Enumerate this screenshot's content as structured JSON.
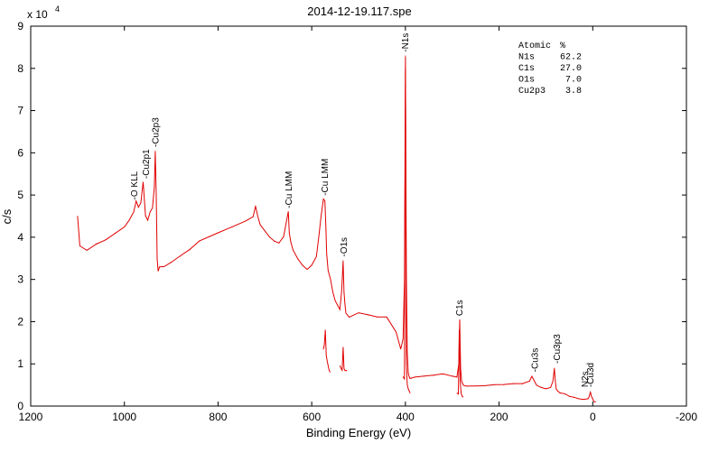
{
  "chart_data": {
    "type": "line",
    "title": "2014-12-19.117.spe",
    "xlabel": "Binding Energy (eV)",
    "ylabel": "c/s",
    "y_multiplier": "x 10",
    "y_exponent": "4",
    "xlim": [
      1200,
      -200
    ],
    "ylim": [
      0,
      9
    ],
    "x_reversed": true,
    "grid": false,
    "x_ticks": [
      1200,
      1000,
      800,
      600,
      400,
      200,
      0,
      -200
    ],
    "y_ticks": [
      0,
      1,
      2,
      3,
      4,
      5,
      6,
      7,
      8,
      9
    ],
    "series_color": "#e00000",
    "series": [
      {
        "x": [
          1100,
          1095,
          1080,
          1060,
          1040,
          1020,
          1000,
          990,
          980,
          975,
          970,
          965,
          960,
          955,
          950,
          945,
          940,
          936,
          934,
          932,
          930,
          928,
          925,
          915,
          900,
          880,
          860,
          840,
          820,
          800,
          780,
          760,
          740,
          725,
          720,
          715,
          710,
          700,
          690,
          680,
          670,
          660,
          650,
          648,
          645,
          640,
          630,
          620,
          610,
          600,
          590,
          585,
          580,
          575,
          572,
          570,
          568,
          565,
          560,
          555,
          550,
          545,
          540,
          536,
          533,
          531,
          529,
          527,
          520,
          500,
          480,
          460,
          440,
          420,
          410,
          405,
          402,
          400,
          398,
          396,
          394,
          392,
          390,
          380,
          360,
          340,
          320,
          300,
          290,
          286,
          284,
          282,
          280,
          278,
          276,
          270,
          250,
          230,
          210,
          190,
          170,
          150,
          135,
          130,
          125,
          120,
          110,
          100,
          90,
          85,
          82,
          80,
          78,
          75,
          70,
          60,
          50,
          40,
          30,
          20,
          10,
          8,
          5,
          3,
          0,
          -2,
          -4,
          -6
        ],
        "y": [
          4.5,
          3.8,
          3.7,
          3.85,
          3.95,
          4.1,
          4.25,
          4.4,
          4.6,
          4.85,
          4.7,
          4.8,
          5.3,
          4.5,
          4.4,
          4.6,
          4.7,
          5.2,
          6.05,
          5.0,
          3.5,
          3.2,
          3.3,
          3.3,
          3.4,
          3.55,
          3.7,
          3.9,
          4.0,
          4.1,
          4.2,
          4.3,
          4.4,
          4.5,
          4.75,
          4.5,
          4.3,
          4.15,
          4.0,
          3.9,
          3.85,
          4.0,
          4.6,
          4.1,
          3.9,
          3.7,
          3.5,
          3.35,
          3.25,
          3.35,
          3.55,
          4.0,
          4.5,
          4.9,
          4.85,
          4.3,
          3.6,
          3.2,
          3.0,
          2.7,
          2.5,
          2.4,
          2.3,
          2.75,
          3.45,
          2.7,
          2.4,
          2.2,
          2.1,
          2.2,
          2.15,
          2.1,
          2.1,
          1.75,
          1.35,
          1.6,
          3.0,
          8.3,
          3.2,
          1.3,
          0.8,
          0.7,
          0.65,
          0.68,
          0.7,
          0.72,
          0.75,
          0.7,
          0.68,
          1.0,
          2.05,
          0.9,
          0.6,
          0.55,
          0.5,
          0.48,
          0.48,
          0.48,
          0.5,
          0.5,
          0.52,
          0.52,
          0.58,
          0.7,
          0.6,
          0.5,
          0.45,
          0.42,
          0.45,
          0.6,
          0.9,
          0.6,
          0.4,
          0.35,
          0.3,
          0.28,
          0.22,
          0.2,
          0.17,
          0.16,
          0.18,
          0.22,
          0.35,
          0.25,
          0.18,
          0.12,
          0.1,
          0.1
        ]
      },
      {
        "x": [
          575,
          573,
          571,
          569,
          567,
          565,
          563,
          561
        ],
        "y": [
          1.35,
          1.45,
          1.8,
          1.2,
          1.05,
          0.95,
          0.85,
          0.8
        ]
      },
      {
        "x": [
          540,
          537,
          535,
          533,
          531,
          529,
          527,
          525
        ],
        "y": [
          0.95,
          0.88,
          0.85,
          1.4,
          0.9,
          0.85,
          0.85,
          0.85
        ]
      },
      {
        "x": [
          405,
          402,
          400,
          398,
          396,
          394,
          392,
          390
        ],
        "y": [
          0.7,
          0.65,
          8.0,
          1.0,
          0.5,
          0.4,
          0.35,
          0.3
        ]
      },
      {
        "x": [
          290,
          287,
          285,
          283,
          281,
          279,
          277
        ],
        "y": [
          0.3,
          0.28,
          1.8,
          0.6,
          0.3,
          0.25,
          0.22
        ]
      }
    ],
    "peak_labels": [
      {
        "text": "-O KLL",
        "x": 978,
        "y": 4.8
      },
      {
        "text": "-Cu2p1",
        "x": 953,
        "y": 5.3
      },
      {
        "text": "-Cu2p3",
        "x": 933,
        "y": 6.05
      },
      {
        "text": "-Cu LMM",
        "x": 648,
        "y": 4.6
      },
      {
        "text": "-Cu LMM",
        "x": 571,
        "y": 4.9
      },
      {
        "text": "-O1s",
        "x": 531,
        "y": 3.45
      },
      {
        "text": "-N1s",
        "x": 400,
        "y": 8.3
      },
      {
        "text": "C1s",
        "x": 284,
        "y": 2.05
      },
      {
        "text": "-Cu3s",
        "x": 123,
        "y": 0.72
      },
      {
        "text": "-Cu3p3",
        "x": 76,
        "y": 0.92
      },
      {
        "text": "N2s",
        "x": 16,
        "y": 0.36
      },
      {
        "text": "-Cu3d",
        "x": 4,
        "y": 0.36
      }
    ],
    "legend": {
      "placement": "top-right",
      "header": [
        "Atomic",
        "%"
      ],
      "rows": [
        [
          "N1s",
          "62.2"
        ],
        [
          "C1s",
          "27.0"
        ],
        [
          "O1s",
          "7.0"
        ],
        [
          "Cu2p3",
          "3.8"
        ]
      ]
    }
  }
}
